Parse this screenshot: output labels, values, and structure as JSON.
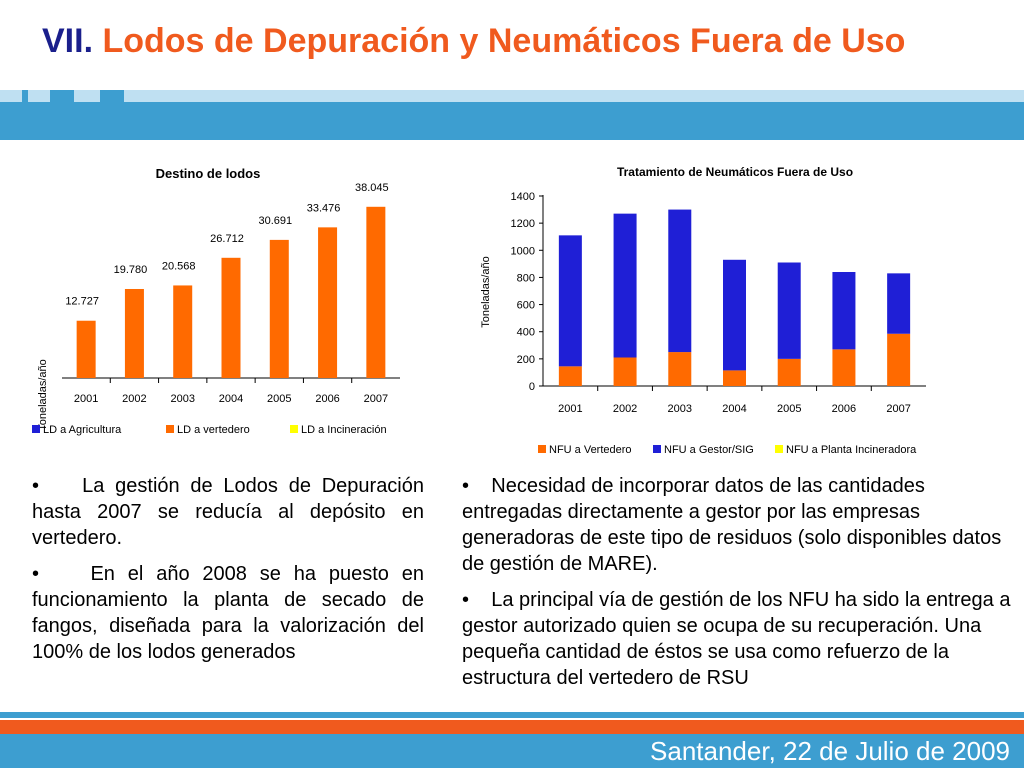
{
  "header": {
    "number": "VII.",
    "title": "Lodos de Depuración y Neumáticos Fuera de Uso"
  },
  "chart_data": [
    {
      "type": "bar",
      "title": "Destino de lodos",
      "ylabel": "Toneladas/año",
      "xlabel": "",
      "categories": [
        "2001",
        "2002",
        "2003",
        "2004",
        "2005",
        "2006",
        "2007"
      ],
      "series": [
        {
          "name": "LD a Agricultura",
          "color": "#1f1fd6",
          "values": [
            0,
            0,
            0,
            0,
            0,
            0,
            0
          ]
        },
        {
          "name": "LD a vertedero",
          "color": "#ff6a00",
          "values": [
            12727,
            19780,
            20568,
            26712,
            30691,
            33476,
            38045
          ]
        },
        {
          "name": "LD a Incineración",
          "color": "#ffff00",
          "values": [
            0,
            0,
            0,
            0,
            0,
            0,
            0
          ]
        }
      ],
      "data_labels": [
        "12.727",
        "19.780",
        "20.568",
        "26.712",
        "30.691",
        "33.476",
        "38.045"
      ],
      "ylim": [
        0,
        40000
      ],
      "grid": false,
      "legend": "bottom"
    },
    {
      "type": "bar",
      "stacked": true,
      "title": "Tratamiento de Neumáticos Fuera de Uso",
      "ylabel": "Toneladas/año",
      "xlabel": "",
      "categories": [
        "2001",
        "2002",
        "2003",
        "2004",
        "2005",
        "2006",
        "2007"
      ],
      "series": [
        {
          "name": "NFU a Vertedero",
          "color": "#ff6a00",
          "values": [
            145,
            210,
            250,
            115,
            200,
            270,
            385
          ]
        },
        {
          "name": "NFU a Gestor/SIG",
          "color": "#1f1fd6",
          "values": [
            965,
            1060,
            1050,
            815,
            710,
            570,
            445
          ]
        },
        {
          "name": "NFU a Planta Incineradora",
          "color": "#ffff00",
          "values": [
            0,
            0,
            0,
            0,
            0,
            0,
            0
          ]
        }
      ],
      "yticks": [
        "0",
        "200",
        "400",
        "600",
        "800",
        "1000",
        "1200",
        "1400"
      ],
      "ylim": [
        0,
        1400
      ],
      "grid": false,
      "legend": "bottom"
    }
  ],
  "left_bullets": [
    "La gestión de Lodos de Depuración hasta 2007 se reducía al depósito en vertedero.",
    "En el año 2008 se ha puesto en funcionamiento la planta de secado de fangos, diseñada para la valorización del 100% de los lodos generados"
  ],
  "right_bullets": [
    "Necesidad de incorporar datos de las cantidades entregadas directamente a gestor por las empresas generadoras de este tipo de residuos (solo disponibles datos de gestión de MARE).",
    "La principal vía de gestión de los NFU ha sido la entrega a gestor autorizado quien se ocupa de su recuperación. Una pequeña cantidad de éstos se usa como refuerzo de la estructura del vertedero de RSU"
  ],
  "footer": {
    "text": "Santander, 22 de Julio de 2009"
  },
  "bullet_symbol": "•"
}
